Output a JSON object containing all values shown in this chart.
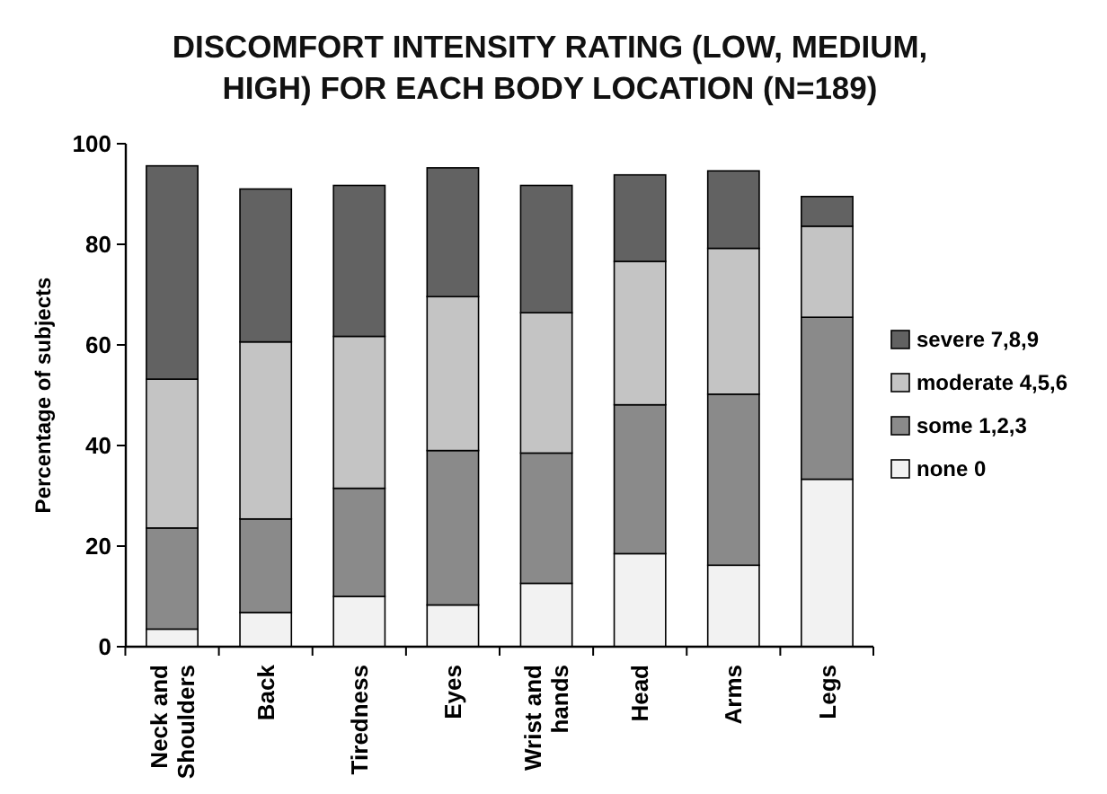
{
  "chart_data": {
    "type": "bar",
    "title": "DISCOMFORT INTENSITY RATING (LOW, MEDIUM, HIGH) FOR EACH BODY LOCATION (N=189)",
    "ylabel": "Percentage of subjects",
    "categories": [
      "Neck and Shoulders",
      "Back",
      "Tiredness",
      "Eyes",
      "Wrist and hands",
      "Head",
      "Arms",
      "Legs"
    ],
    "stacked": true,
    "ylim": [
      0,
      100
    ],
    "yticks": [
      0,
      20,
      40,
      60,
      80,
      100
    ],
    "grid": false,
    "legend": "right",
    "series": [
      {
        "name": "none 0",
        "color": "#f2f2f2",
        "values": [
          3.5,
          6.8,
          10,
          8.3,
          12.6,
          18.5,
          16.2,
          33.3
        ]
      },
      {
        "name": "some 1,2,3",
        "color": "#8a8a8a",
        "values": [
          20.1,
          18.6,
          21.5,
          30.7,
          25.9,
          29.6,
          34,
          32.2
        ]
      },
      {
        "name": "moderate 4,5,6",
        "color": "#c4c4c4",
        "values": [
          29.6,
          35.2,
          30.2,
          30.6,
          27.9,
          28.5,
          29,
          18.1
        ]
      },
      {
        "name": "severe 7,8,9",
        "color": "#626262",
        "values": [
          42.4,
          30.4,
          30,
          25.6,
          25.3,
          17.2,
          15.4,
          5.9
        ]
      }
    ]
  }
}
